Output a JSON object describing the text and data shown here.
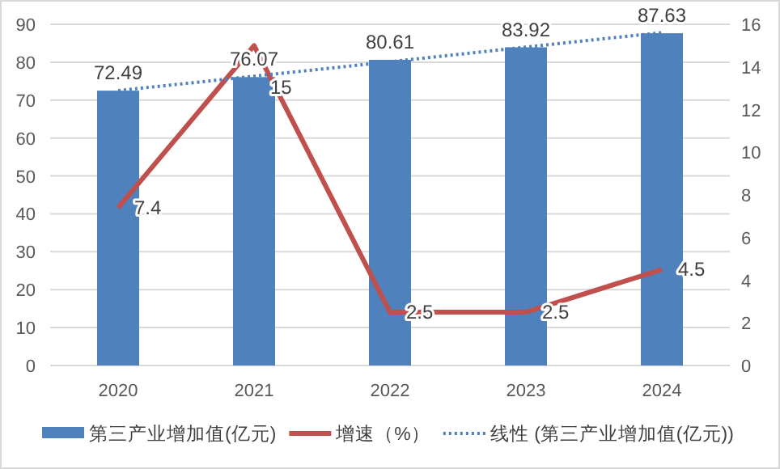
{
  "chart_data": {
    "type": "bar",
    "categories": [
      "2020",
      "2021",
      "2022",
      "2023",
      "2024"
    ],
    "series": [
      {
        "name": "第三产业增加值(亿元)",
        "color": "#4f81bd",
        "values": [
          72.49,
          76.07,
          80.61,
          83.92,
          87.63
        ],
        "value_labels": [
          "72.49",
          "76.07",
          "80.61",
          "83.92",
          "87.63"
        ]
      },
      {
        "name": "增速（%）",
        "type": "line",
        "axis": "y2",
        "color": "#c0504d",
        "values": [
          7.4,
          15,
          2.5,
          2.5,
          4.5
        ],
        "value_labels": [
          "7.4",
          "15",
          "2.5",
          "2.5",
          "4.5"
        ]
      },
      {
        "name": "线性 (第三产业增加值(亿元))",
        "type": "line",
        "line_style": "dotted",
        "color": "#4f81bd",
        "values": [
          72.5,
          76.3,
          80.1,
          84.0,
          87.8
        ]
      }
    ],
    "ylim": [
      0,
      90
    ],
    "yticks": [
      0,
      10,
      20,
      30,
      40,
      50,
      60,
      70,
      80,
      90
    ],
    "y2lim": [
      0,
      16
    ],
    "y2ticks": [
      0,
      2,
      4,
      6,
      8,
      10,
      12,
      14,
      16
    ],
    "grid": "y",
    "legend": "bottom"
  }
}
